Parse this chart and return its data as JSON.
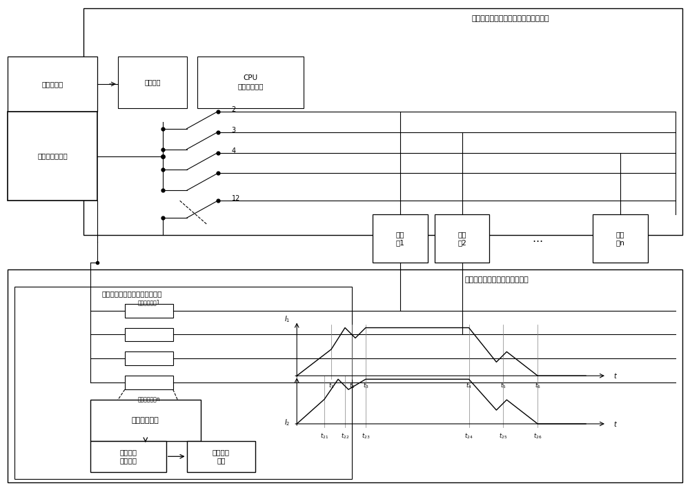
{
  "title_top": "发动机指令与控制匹配性测试仪校准器",
  "label_cejikongzhuanji": "测控计算机",
  "label_tongxinjiekou": "通信接口",
  "label_cpu": "CPU\n时序控制中心",
  "label_dagonglv": "大功率直流电源",
  "label_dianci1": "电磁\n阀1",
  "label_dianci2": "电磁\n阀2",
  "label_diancin": "电磁\n阀n",
  "label_fadian_top": "发动机指令与控制匹配性测试仪",
  "label_dianliu1": "电流采样电阻1",
  "label_dianliunn": "电流采样电阻n",
  "label_xinhao": "信号调理单元",
  "label_gaosuju": "高速数据\n采集单元",
  "label_shujufenxi": "数据分析\n单元",
  "label_bottom_title": "发动机指令与控制匹配性测试仪",
  "bg_color": "#ffffff"
}
